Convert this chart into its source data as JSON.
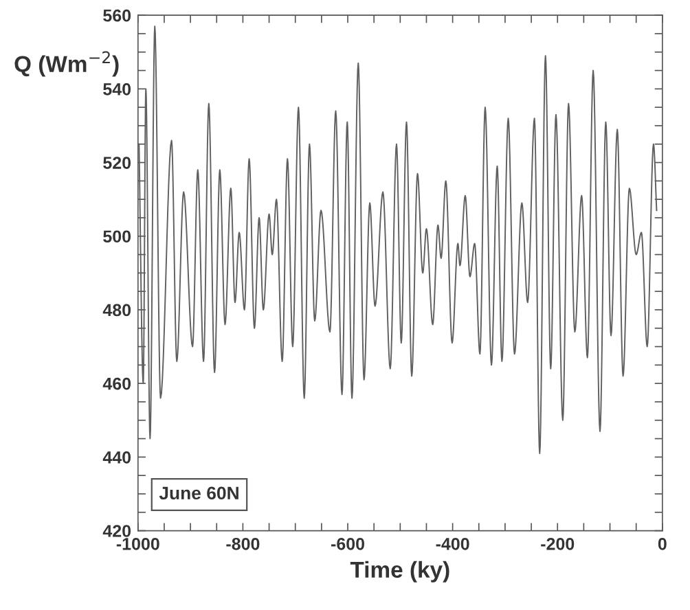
{
  "chart_data": {
    "type": "line",
    "xlabel": "Time (ky)",
    "ylabel": "Q (Wm$^{−2}$)",
    "annotations": [
      "June 60N"
    ],
    "xlim": [
      -1000,
      0
    ],
    "ylim": [
      420,
      560
    ],
    "xticks": [
      -1000,
      {
        "value": -950,
        "label": null
      },
      -800,
      {
        "value": -900,
        "label": null
      },
      {
        "value": -850,
        "label": null
      },
      {
        "value": -750,
        "label": null
      },
      {
        "value": -700,
        "label": null
      },
      -600,
      {
        "value": -650,
        "label": null
      },
      {
        "value": -550,
        "label": null
      },
      {
        "value": -500,
        "label": null
      },
      {
        "value": -450,
        "label": null
      },
      -400,
      {
        "value": -350,
        "label": null
      },
      {
        "value": -300,
        "label": null
      },
      {
        "value": -250,
        "label": null
      },
      -200,
      {
        "value": -150,
        "label": null
      },
      {
        "value": -100,
        "label": null
      },
      {
        "value": -50,
        "label": null
      },
      0
    ],
    "yticks": [
      420,
      {
        "value": 425,
        "label": null
      },
      {
        "value": 430,
        "label": null
      },
      {
        "value": 435,
        "label": null
      },
      440,
      {
        "value": 445,
        "label": null
      },
      {
        "value": 450,
        "label": null
      },
      {
        "value": 455,
        "label": null
      },
      460,
      {
        "value": 465,
        "label": null
      },
      {
        "value": 470,
        "label": null
      },
      {
        "value": 475,
        "label": null
      },
      480,
      {
        "value": 485,
        "label": null
      },
      {
        "value": 490,
        "label": null
      },
      {
        "value": 495,
        "label": null
      },
      500,
      {
        "value": 505,
        "label": null
      },
      {
        "value": 510,
        "label": null
      },
      {
        "value": 515,
        "label": null
      },
      520,
      {
        "value": 525,
        "label": null
      },
      {
        "value": 530,
        "label": null
      },
      {
        "value": 535,
        "label": null
      },
      540,
      {
        "value": 545,
        "label": null
      },
      {
        "value": 550,
        "label": null
      },
      {
        "value": 555,
        "label": null
      },
      560
    ],
    "grid": false,
    "legend": false,
    "marker": "none",
    "line_style": "solid",
    "series": [
      {
        "color": "#606060",
        "x": [
          -998,
          -990,
          -985,
          -977,
          -968,
          -957,
          -936,
          -926,
          -913,
          -896,
          -886,
          -875,
          -865,
          -854,
          -844,
          -834,
          -823,
          -815,
          -807,
          -797,
          -788,
          -778,
          -769,
          -761,
          -750,
          -744,
          -736,
          -725,
          -715,
          -705,
          -694,
          -683,
          -673,
          -663,
          -651,
          -634,
          -623,
          -611,
          -601,
          -592,
          -580,
          -569,
          -558,
          -548,
          -533,
          -519,
          -507,
          -498,
          -488,
          -478,
          -467,
          -457,
          -450,
          -438,
          -428,
          -422,
          -413,
          -401,
          -390,
          -386,
          -376,
          -367,
          -358,
          -348,
          -338,
          -326,
          -315,
          -306,
          -294,
          -282,
          -268,
          -257,
          -244,
          -234,
          -223,
          -213,
          -203,
          -190,
          -179,
          -167,
          -154,
          -143,
          -132,
          -119,
          -108,
          -98,
          -86,
          -75,
          -63,
          -50,
          -40,
          -29,
          -17,
          -11
        ],
        "values": [
          525,
          460,
          540,
          445,
          557,
          456,
          526,
          466,
          512,
          470,
          518,
          466,
          536,
          463,
          518,
          476,
          513,
          482,
          501,
          480,
          521,
          475,
          505,
          480,
          506,
          495,
          510,
          466,
          521,
          470,
          535,
          456,
          525,
          477,
          507,
          474,
          534,
          457,
          531,
          456,
          547,
          461,
          509,
          481,
          512,
          464,
          525,
          471,
          531,
          462,
          517,
          490,
          502,
          476,
          503,
          494,
          515,
          471,
          498,
          492,
          511,
          489,
          498,
          468,
          535,
          465,
          519,
          466,
          532,
          468,
          509,
          482,
          532,
          441,
          549,
          464,
          533,
          450,
          536,
          474,
          511,
          467,
          545,
          447,
          531,
          473,
          529,
          462,
          513,
          495,
          501,
          470,
          525,
          507
        ]
      }
    ]
  }
}
